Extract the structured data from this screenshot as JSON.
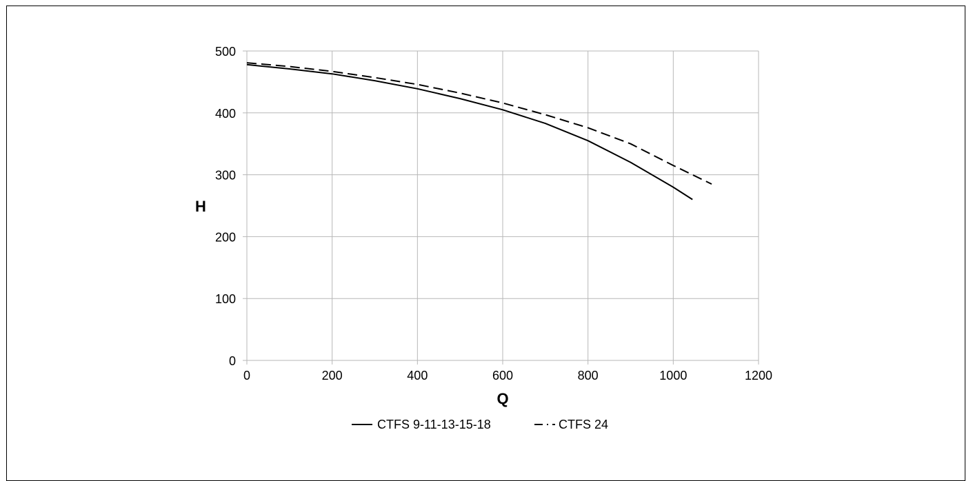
{
  "chart_data": {
    "type": "line",
    "xlabel": "Q",
    "ylabel": "H",
    "xlim": [
      0,
      1200
    ],
    "ylim": [
      0,
      500
    ],
    "xticks": [
      0,
      200,
      400,
      600,
      800,
      1000,
      1200
    ],
    "yticks": [
      0,
      100,
      200,
      300,
      400,
      500
    ],
    "grid": true,
    "legend_position": "bottom",
    "series": [
      {
        "name": "CTFS 9-11-13-15-18",
        "style": "solid",
        "color": "#000000",
        "x": [
          0,
          100,
          200,
          300,
          400,
          500,
          600,
          700,
          800,
          900,
          1000,
          1045
        ],
        "y": [
          478,
          471,
          463,
          452,
          439,
          423,
          405,
          383,
          355,
          320,
          280,
          260
        ]
      },
      {
        "name": "CTFS 24",
        "style": "dashed",
        "color": "#000000",
        "x": [
          0,
          100,
          200,
          300,
          400,
          500,
          600,
          700,
          800,
          900,
          1000,
          1090
        ],
        "y": [
          481,
          475,
          467,
          457,
          446,
          432,
          416,
          397,
          376,
          350,
          315,
          285
        ]
      }
    ]
  }
}
